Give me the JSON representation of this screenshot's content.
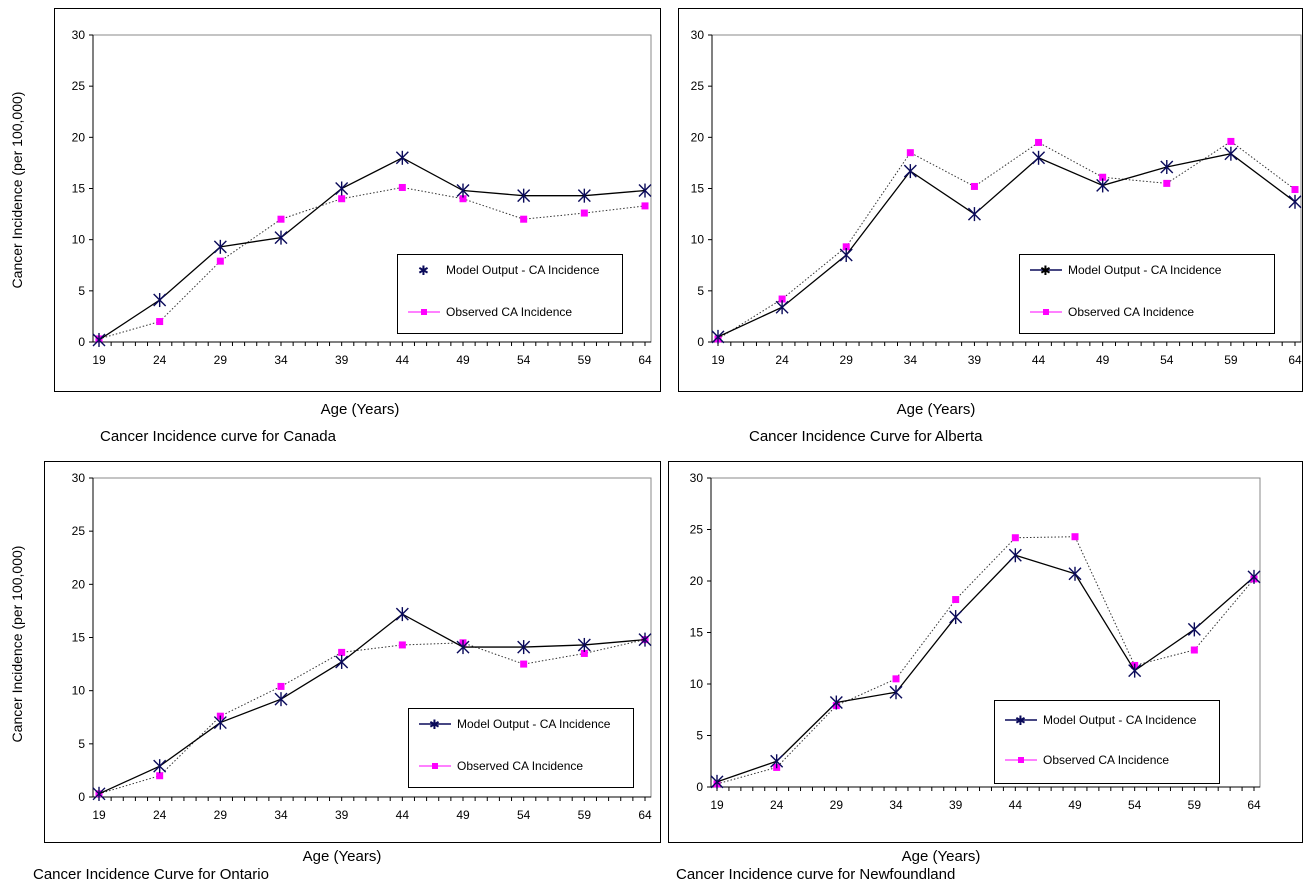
{
  "y_axis_label": "Cancer Incidence (per 100,000)",
  "colors": {
    "model": "#0a0a5a",
    "observed": "#ff00ff",
    "observed_line": "#333333"
  },
  "chart_data": [
    {
      "type": "line",
      "title": "Cancer Incidence curve for Canada",
      "xlabel": "Age (Years)",
      "ylabel": "Cancer Incidence (per 100,000)",
      "categories": [
        "19",
        "24",
        "29",
        "34",
        "39",
        "44",
        "49",
        "54",
        "59",
        "64"
      ],
      "ylim": [
        0,
        30
      ],
      "yticks": [
        0,
        5,
        10,
        15,
        20,
        25,
        30
      ],
      "grid": false,
      "legend_position": "right",
      "series": [
        {
          "name": "Model Output - CA Incidence",
          "values": [
            0.2,
            4.1,
            9.3,
            10.2,
            15.0,
            18.0,
            14.8,
            14.3,
            14.3,
            14.8
          ],
          "marker": "star",
          "line": "solid"
        },
        {
          "name": "Observed CA Incidence",
          "values": [
            0.3,
            2.0,
            7.9,
            12.0,
            14.0,
            15.1,
            14.0,
            12.0,
            12.6,
            13.3
          ],
          "marker": "square",
          "line": "dotted"
        }
      ],
      "legend_labels": [
        "Model Output - CA Incidence",
        "Observed CA Incidence"
      ]
    },
    {
      "type": "line",
      "title": "Cancer Incidence Curve for Alberta",
      "xlabel": "Age (Years)",
      "ylabel": "",
      "categories": [
        "19",
        "24",
        "29",
        "34",
        "39",
        "44",
        "49",
        "54",
        "59",
        "64"
      ],
      "ylim": [
        0,
        30
      ],
      "yticks": [
        0,
        5,
        10,
        15,
        20,
        25,
        30
      ],
      "grid": false,
      "legend_position": "right",
      "series": [
        {
          "name": "Model Output - CA Incidence",
          "values": [
            0.5,
            3.4,
            8.5,
            16.7,
            12.5,
            18.0,
            15.3,
            17.1,
            18.4,
            13.7
          ],
          "marker": "star",
          "line": "solid"
        },
        {
          "name": "Observed CA Incidence",
          "values": [
            0.3,
            4.2,
            9.3,
            18.5,
            15.2,
            19.5,
            16.1,
            15.5,
            19.6,
            14.9
          ],
          "marker": "square",
          "line": "dotted"
        }
      ],
      "legend_labels": [
        "Model Output - CA Incidence",
        "Observed CA Incidence"
      ]
    },
    {
      "type": "line",
      "title": "Cancer Incidence Curve for Ontario",
      "xlabel": "Age (Years)",
      "ylabel": "Cancer Incidence (per 100,000)",
      "categories": [
        "19",
        "24",
        "29",
        "34",
        "39",
        "44",
        "49",
        "54",
        "59",
        "64"
      ],
      "ylim": [
        0,
        30
      ],
      "yticks": [
        0,
        5,
        10,
        15,
        20,
        25,
        30
      ],
      "grid": false,
      "legend_position": "right",
      "series": [
        {
          "name": "Model Output - CA Incidence",
          "values": [
            0.3,
            2.9,
            7.0,
            9.2,
            12.7,
            17.2,
            14.1,
            14.1,
            14.3,
            14.8
          ],
          "marker": "star",
          "line": "solid"
        },
        {
          "name": "Observed CA Incidence",
          "values": [
            0.3,
            2.0,
            7.6,
            10.4,
            13.6,
            14.3,
            14.5,
            12.5,
            13.5,
            14.8
          ],
          "marker": "square",
          "line": "dotted"
        }
      ],
      "legend_labels": [
        "Model Output - CA Incidence",
        "Observed CA Incidence"
      ]
    },
    {
      "type": "line",
      "title": "Cancer Incidence curve for Newfoundland",
      "xlabel": "Age (Years)",
      "ylabel": "",
      "categories": [
        "19",
        "24",
        "29",
        "34",
        "39",
        "44",
        "49",
        "54",
        "59",
        "64"
      ],
      "ylim": [
        0,
        30
      ],
      "yticks": [
        0,
        5,
        10,
        15,
        20,
        25,
        30
      ],
      "grid": false,
      "legend_position": "right",
      "series": [
        {
          "name": "Model Output - CA Incidence",
          "values": [
            0.5,
            2.5,
            8.2,
            9.2,
            16.5,
            22.5,
            20.7,
            11.3,
            15.3,
            20.4
          ],
          "marker": "star",
          "line": "solid"
        },
        {
          "name": "Observed CA Incidence",
          "values": [
            0.3,
            1.9,
            7.9,
            10.5,
            18.2,
            24.2,
            24.3,
            11.8,
            13.3,
            20.2
          ],
          "marker": "square",
          "line": "dotted"
        }
      ],
      "legend_labels": [
        "Model Output - CA Incidence",
        "Observed CA Incidence"
      ]
    }
  ]
}
